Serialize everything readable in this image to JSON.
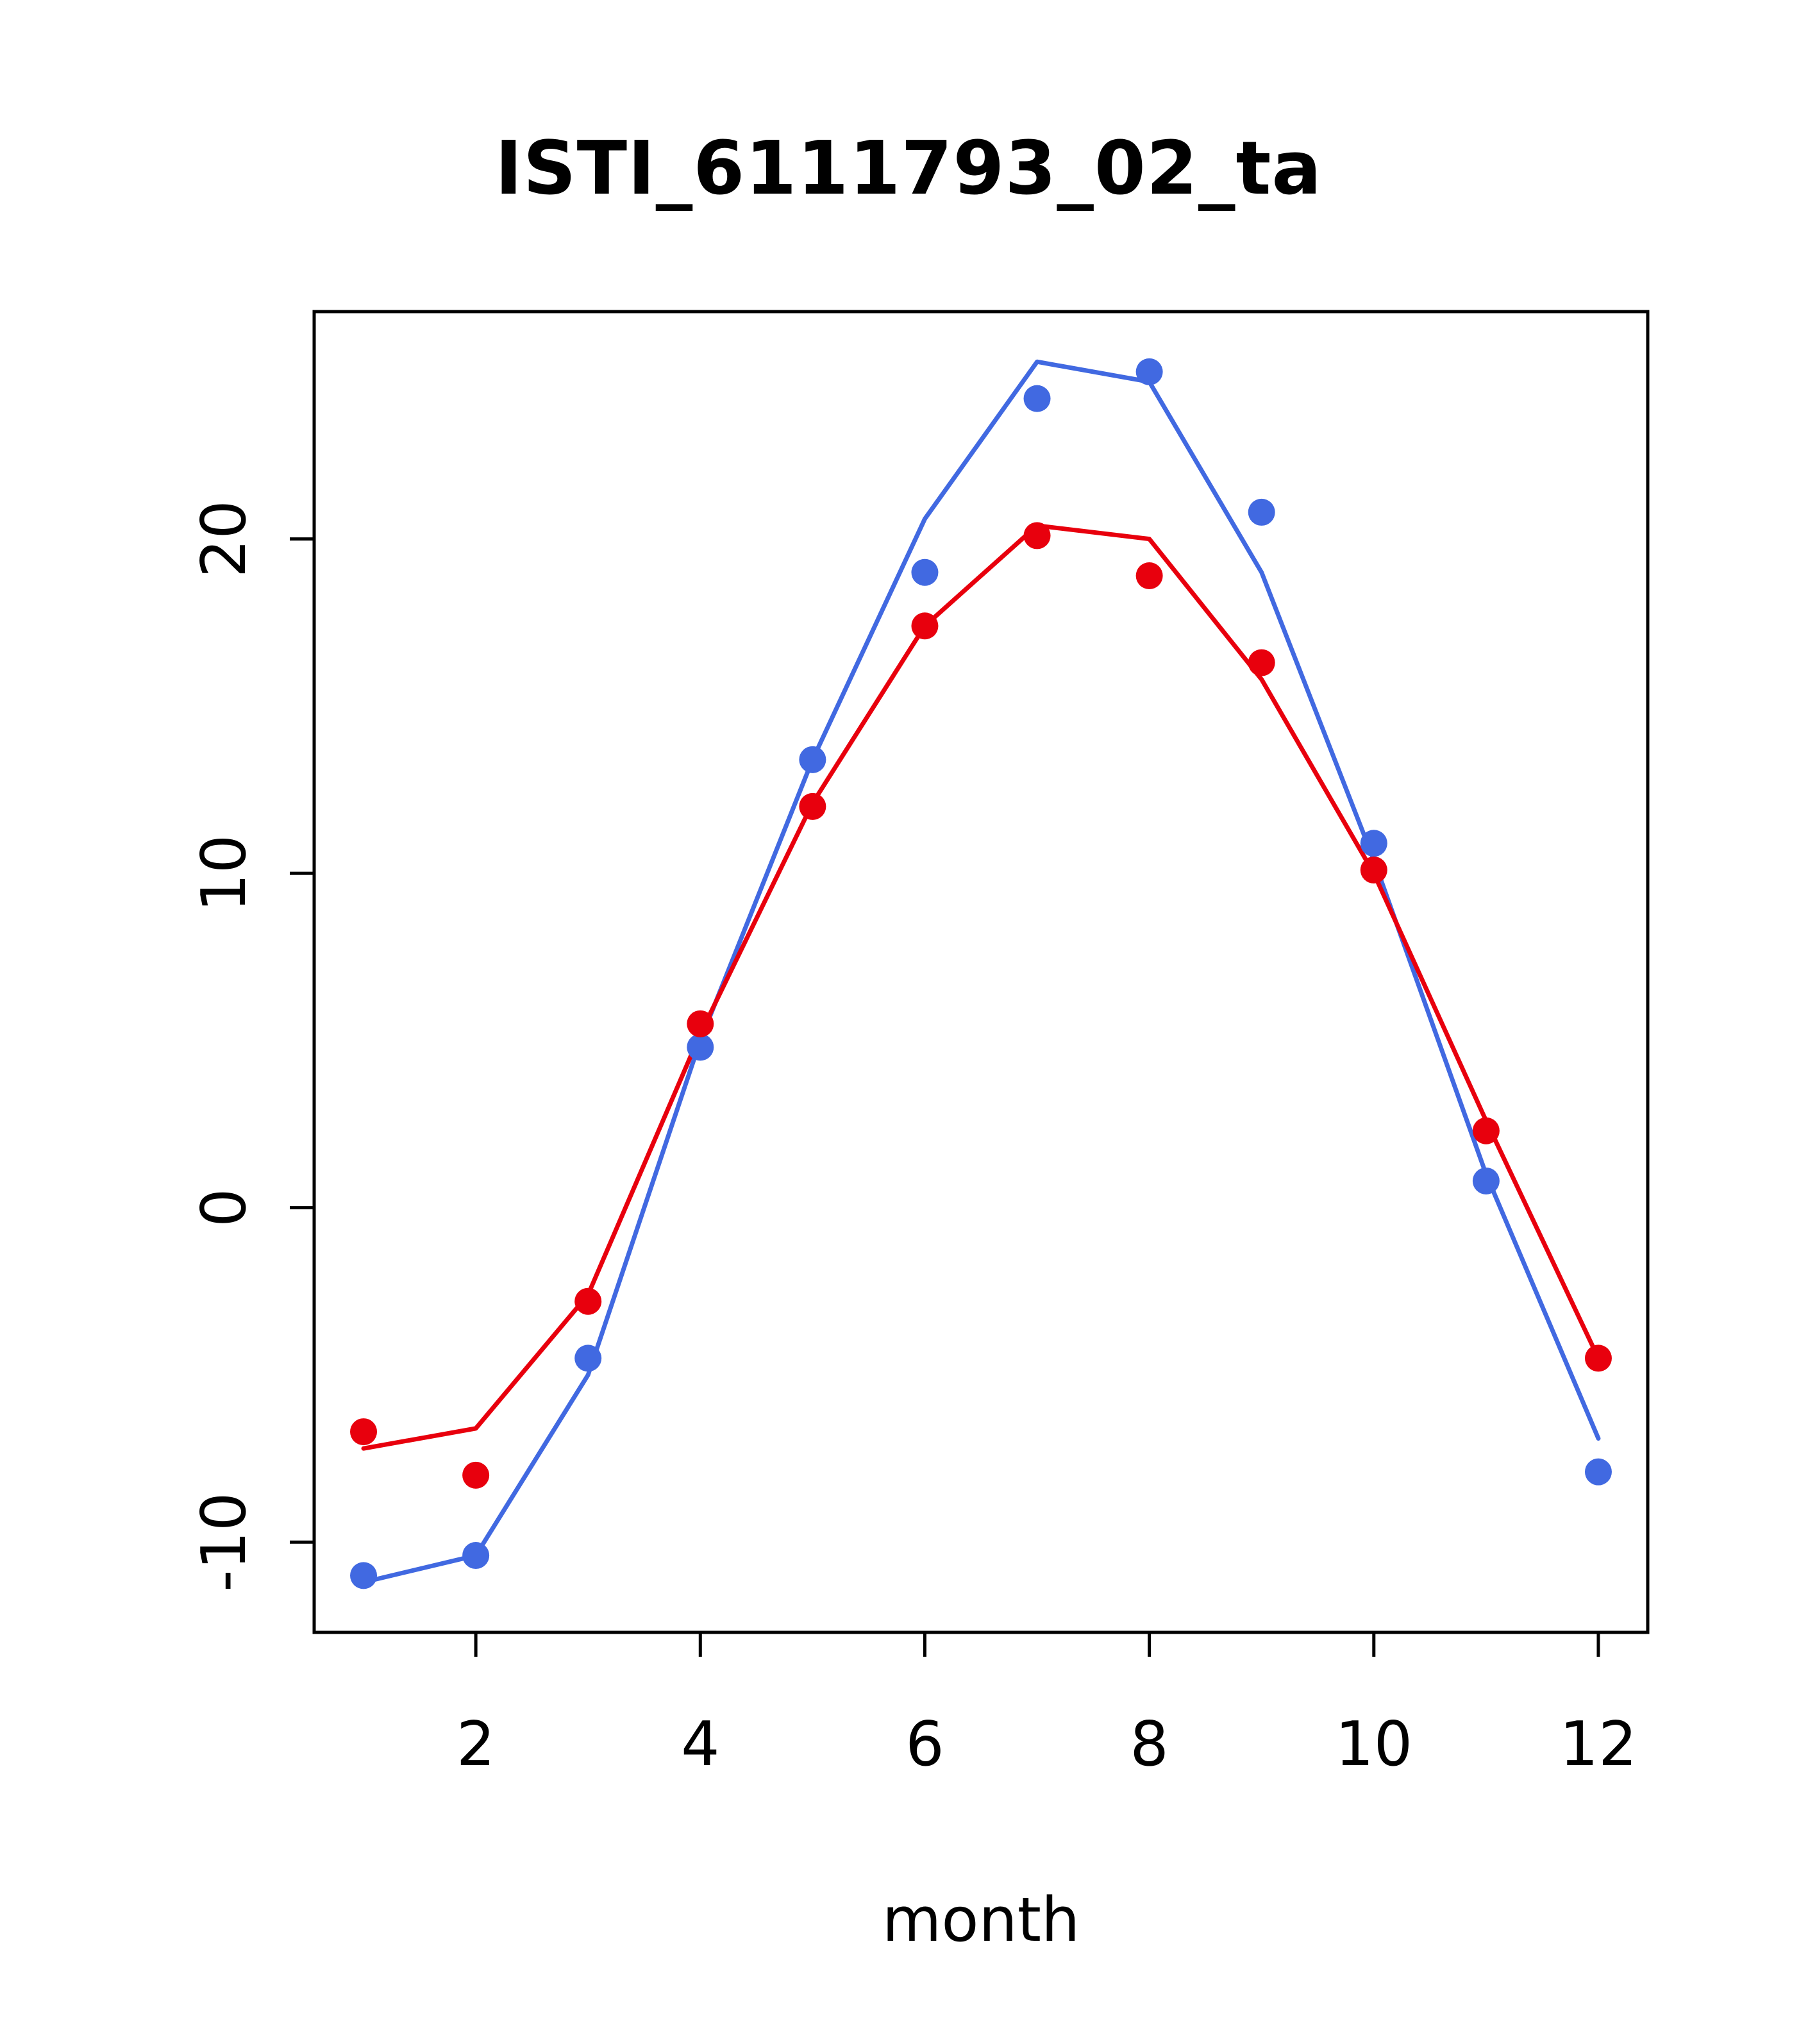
{
  "title": "ISTI_6111793_02_ta",
  "chart_data": {
    "type": "line",
    "title": "ISTI_6111793_02_ta",
    "xlabel": "month",
    "ylabel": "",
    "x": [
      1,
      2,
      3,
      4,
      5,
      6,
      7,
      8,
      9,
      10,
      11,
      12
    ],
    "xlim": [
      0.56,
      12.44
    ],
    "ylim": [
      -12.7,
      26.8
    ],
    "xticks": [
      2,
      4,
      6,
      8,
      10,
      12
    ],
    "yticks": [
      -10,
      0,
      10,
      20
    ],
    "grid": false,
    "legend": null,
    "colors": {
      "blue": "#4169e1",
      "red": "#e8000d",
      "axis": "#000000"
    },
    "series": [
      {
        "name": "blue-line",
        "style": "line",
        "color": "#4169e1",
        "values": [
          -11.2,
          -10.4,
          -5.0,
          5.0,
          13.4,
          20.6,
          25.3,
          24.7,
          19.0,
          10.4,
          1.0,
          -6.9
        ]
      },
      {
        "name": "red-line",
        "style": "line",
        "color": "#e8000d",
        "values": [
          -7.2,
          -6.6,
          -2.6,
          5.2,
          12.1,
          17.4,
          20.4,
          20.0,
          15.8,
          10.0,
          2.6,
          -4.5
        ]
      },
      {
        "name": "blue-points",
        "style": "points",
        "color": "#4169e1",
        "values": [
          -11.0,
          -10.4,
          -4.5,
          4.8,
          13.4,
          19.0,
          24.2,
          25.0,
          20.8,
          10.9,
          0.8,
          -7.9
        ]
      },
      {
        "name": "red-points",
        "style": "points",
        "color": "#e8000d",
        "values": [
          -6.7,
          -8.0,
          -2.8,
          5.5,
          12.0,
          17.4,
          20.1,
          18.9,
          16.3,
          10.1,
          2.3,
          -4.5
        ]
      }
    ]
  }
}
